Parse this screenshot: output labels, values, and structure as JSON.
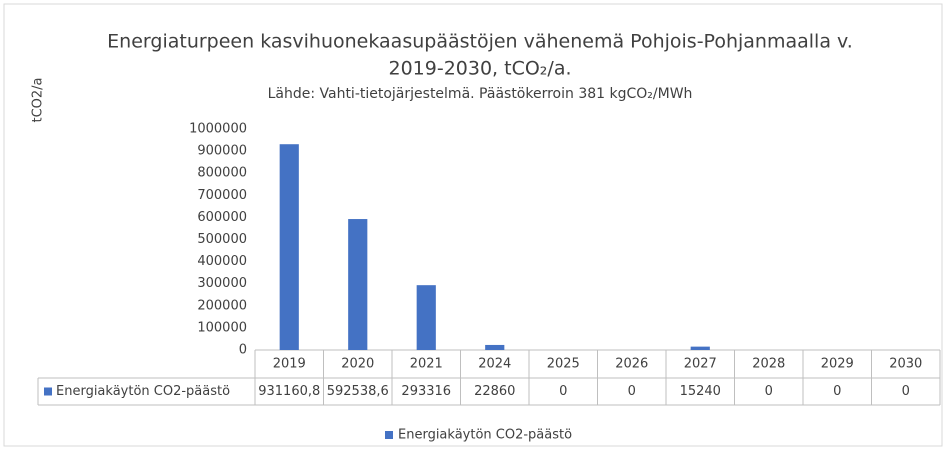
{
  "chart_data": {
    "type": "bar",
    "title": [
      "Energiaturpeen kasvihuonekaasupäästöjen vähenemä Pohjois-Pohjanmaalla v.",
      "2019-2030, tCO₂/a."
    ],
    "subtitle": "Lähde: Vahti-tietojärjestelmä. Päästökerroin 381 kgCO₂/MWh",
    "y_label": "tCO2/a",
    "categories": [
      "2019",
      "2020",
      "2021",
      "2024",
      "2025",
      "2026",
      "2027",
      "2028",
      "2029",
      "2030"
    ],
    "series": [
      {
        "name": "Energiakäytön CO2-päästö",
        "color": "#4472c4",
        "values": [
          931160.8,
          592538.6,
          293316,
          22860,
          0,
          0,
          15240,
          0,
          0,
          0
        ],
        "value_labels": [
          "931160,8",
          "592538,6",
          "293316",
          "22860",
          "0",
          "0",
          "15240",
          "0",
          "0",
          "0"
        ]
      }
    ],
    "ylim": [
      0,
      1000000
    ],
    "yticks": [
      0,
      100000,
      200000,
      300000,
      400000,
      500000,
      600000,
      700000,
      800000,
      900000,
      1000000
    ],
    "grid": false
  }
}
